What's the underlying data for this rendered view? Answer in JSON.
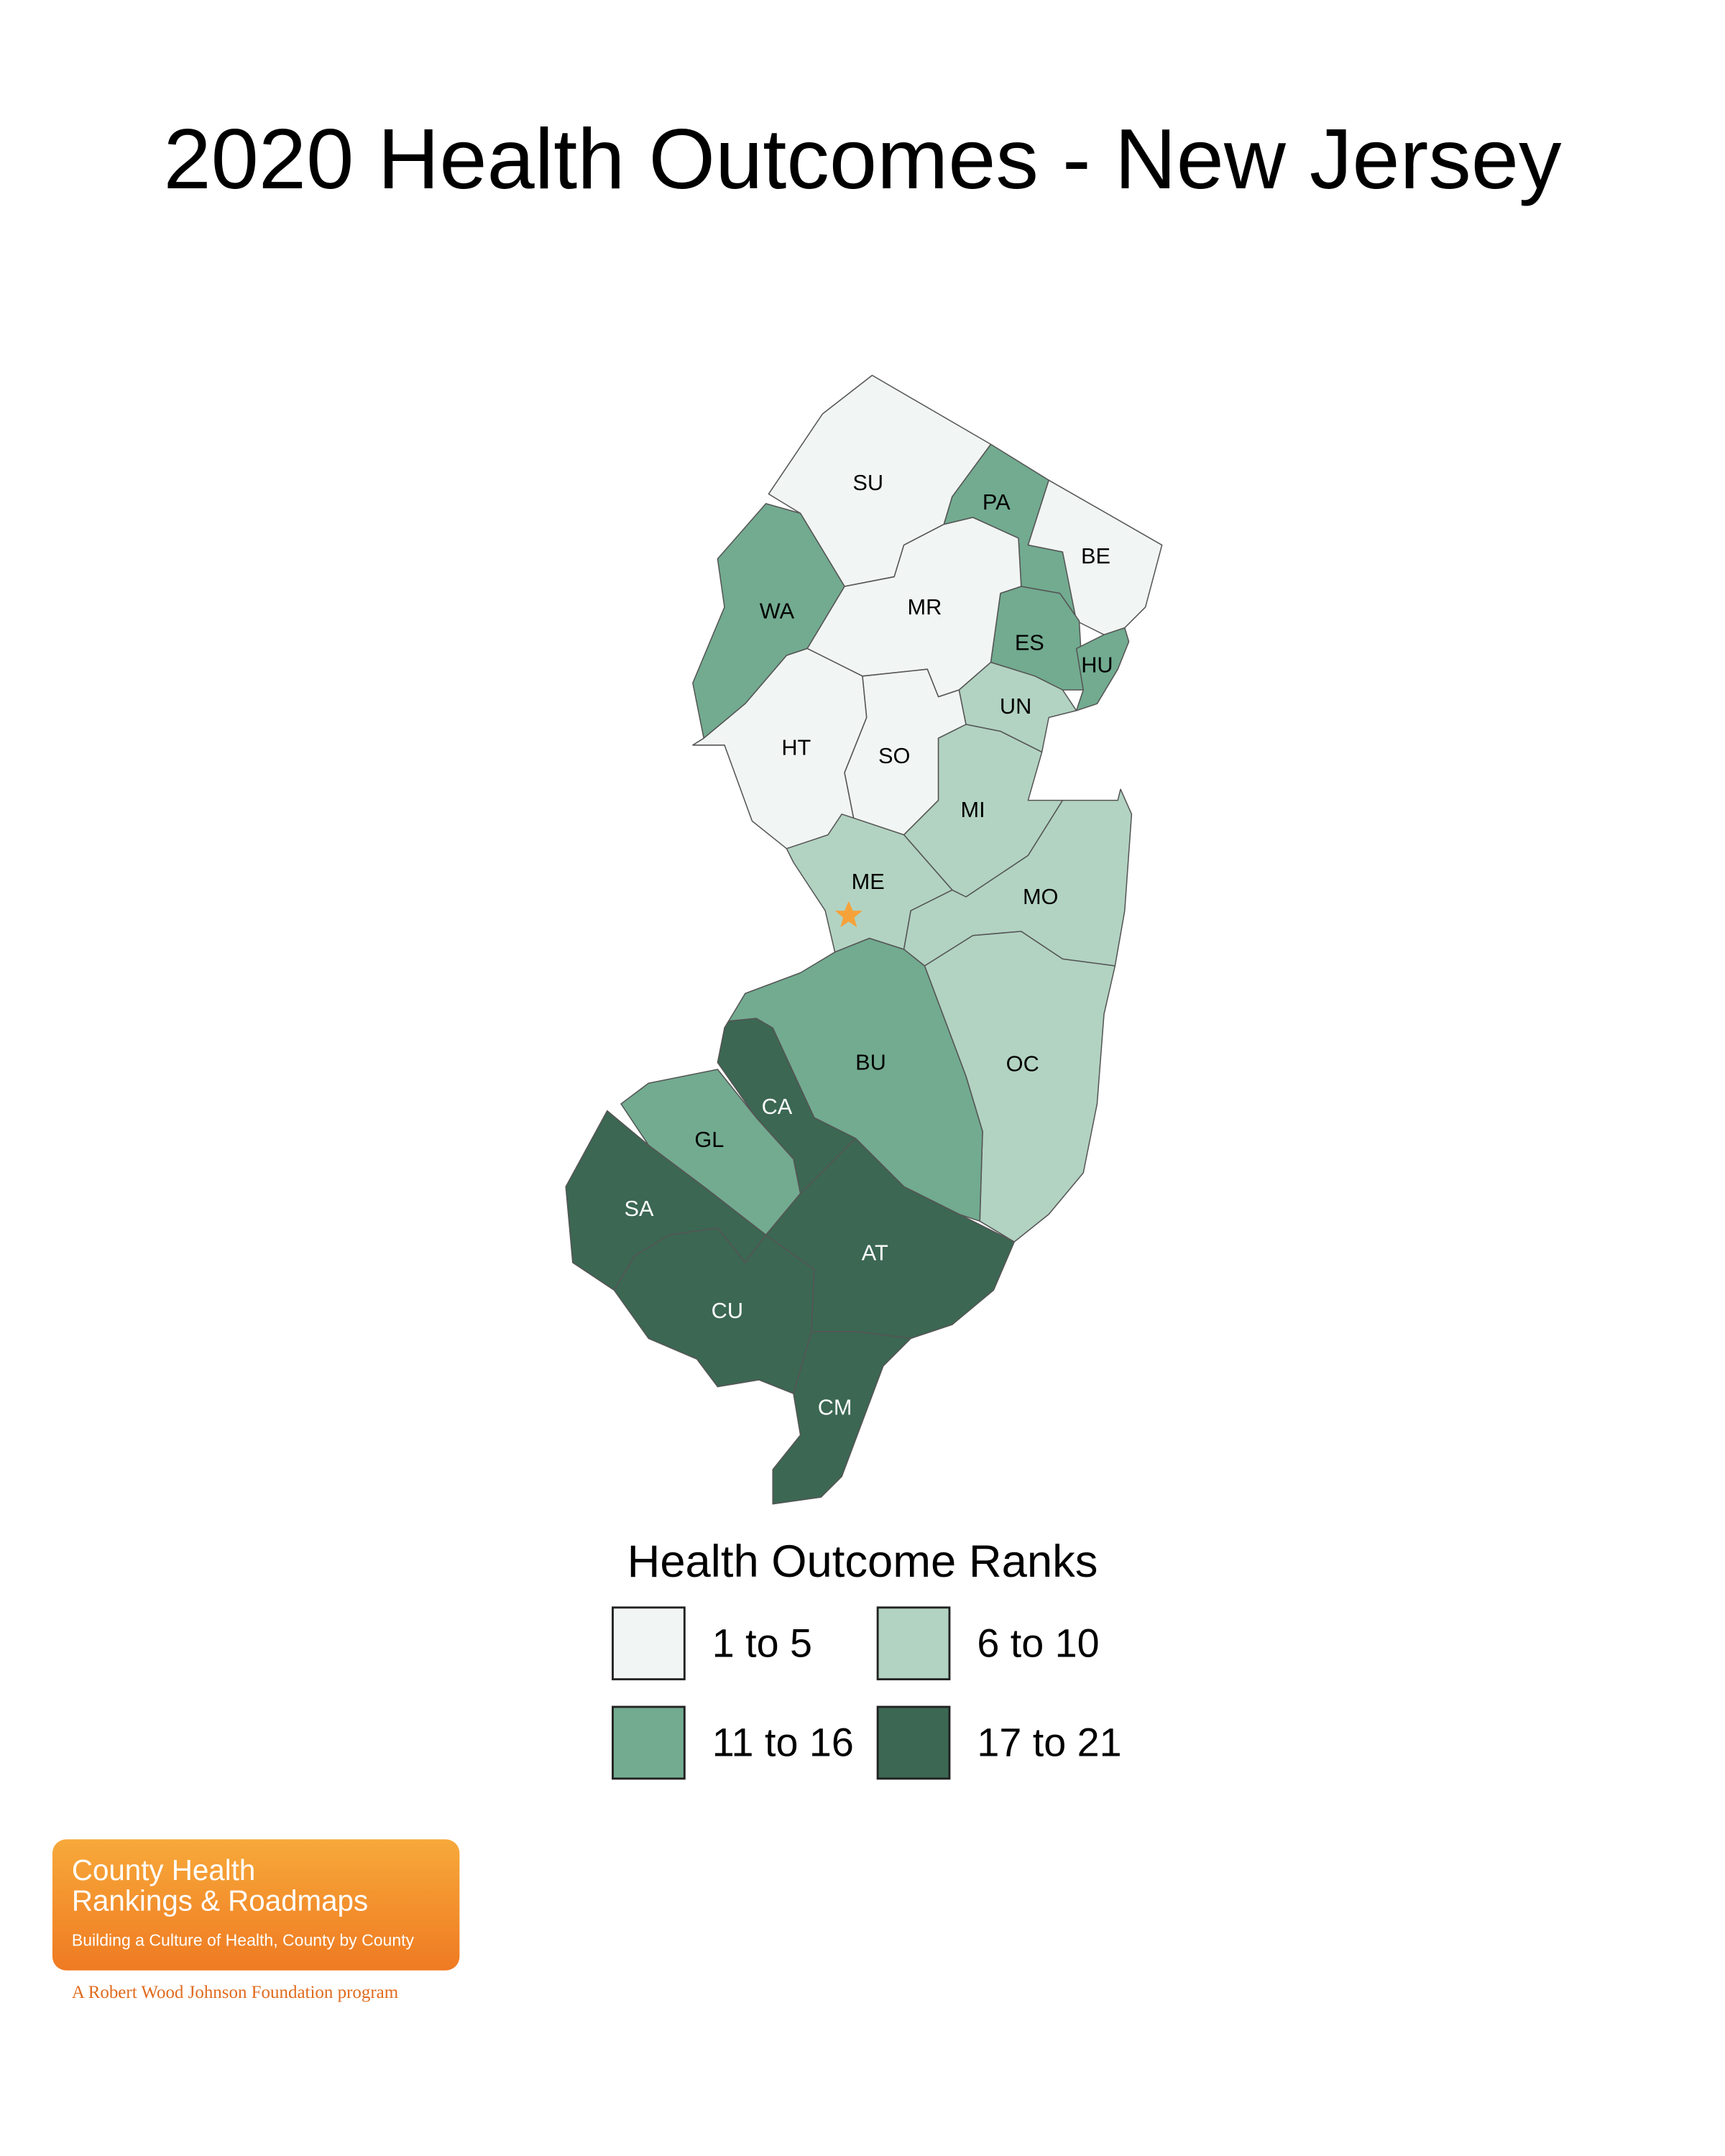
{
  "title": "2020 Health Outcomes - New Jersey",
  "counties": [
    {
      "label": "SU",
      "class": 0
    },
    {
      "label": "PA",
      "class": 2
    },
    {
      "label": "BE",
      "class": 0
    },
    {
      "label": "WA",
      "class": 2
    },
    {
      "label": "MR",
      "class": 0
    },
    {
      "label": "ES",
      "class": 2
    },
    {
      "label": "HU",
      "class": 2
    },
    {
      "label": "HT",
      "class": 0
    },
    {
      "label": "SO",
      "class": 0
    },
    {
      "label": "UN",
      "class": 1
    },
    {
      "label": "MI",
      "class": 1
    },
    {
      "label": "ME",
      "class": 1
    },
    {
      "label": "MO",
      "class": 1
    },
    {
      "label": "OC",
      "class": 1
    },
    {
      "label": "BU",
      "class": 2
    },
    {
      "label": "CA",
      "class": 3
    },
    {
      "label": "GL",
      "class": 2
    },
    {
      "label": "SA",
      "class": 3
    },
    {
      "label": "CU",
      "class": 3
    },
    {
      "label": "AT",
      "class": 3
    },
    {
      "label": "CM",
      "class": 3
    }
  ],
  "legend": {
    "title": "Health Outcome Ranks",
    "items": [
      {
        "label": "1 to 5",
        "color": "#f1f5f3"
      },
      {
        "label": "6 to 10",
        "color": "#b2d3c2"
      },
      {
        "label": "11 to 16",
        "color": "#72ab90"
      },
      {
        "label": "17 to 21",
        "color": "#3b6753"
      }
    ]
  },
  "logo": {
    "line1": "County Health",
    "line2": "Rankings & Roadmaps",
    "tagline": "Building a Culture of Health, County by County",
    "program": "A Robert Wood Johnson Foundation program"
  }
}
